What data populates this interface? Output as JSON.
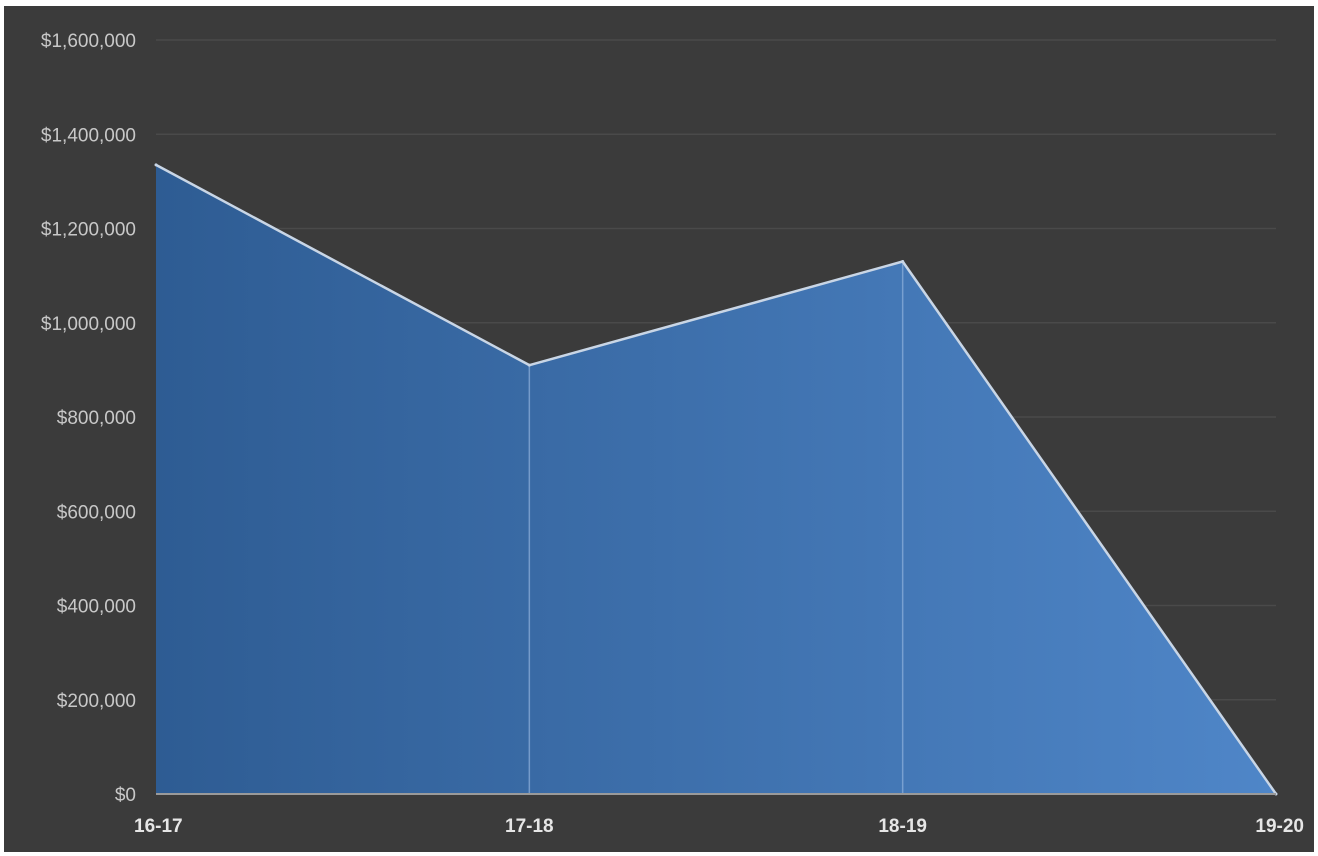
{
  "chart_data": {
    "type": "area",
    "categories": [
      "16-17",
      "17-18",
      "18-19",
      "19-20"
    ],
    "series": [
      {
        "values": [
          1335000,
          910000,
          1130000,
          0
        ]
      }
    ],
    "yticks": [
      "$0",
      "$200,000",
      "$400,000",
      "$600,000",
      "$800,000",
      "$1,000,000",
      "$1,200,000",
      "$1,400,000",
      "$1,600,000"
    ],
    "ylim": [
      0,
      1600000
    ],
    "title": "",
    "xlabel": "",
    "ylabel": "",
    "grid": "horizontal",
    "legend": "none",
    "colors": {
      "background": "#3b3b3b",
      "fill_start": "#2e5c93",
      "fill_end": "#4f86c8",
      "line": "#c9d6e6",
      "gridline": "#4a4a4a",
      "axis": "#9a9a9a"
    }
  }
}
